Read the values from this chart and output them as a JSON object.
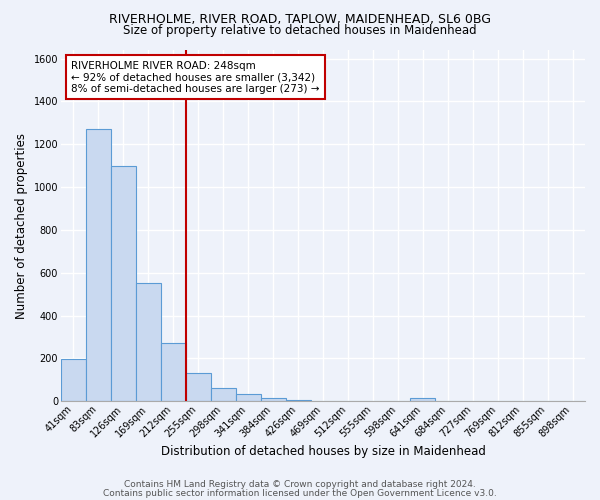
{
  "title_line1": "RIVERHOLME, RIVER ROAD, TAPLOW, MAIDENHEAD, SL6 0BG",
  "title_line2": "Size of property relative to detached houses in Maidenhead",
  "xlabel": "Distribution of detached houses by size in Maidenhead",
  "ylabel": "Number of detached properties",
  "categories": [
    "41sqm",
    "83sqm",
    "126sqm",
    "169sqm",
    "212sqm",
    "255sqm",
    "298sqm",
    "341sqm",
    "384sqm",
    "426sqm",
    "469sqm",
    "512sqm",
    "555sqm",
    "598sqm",
    "641sqm",
    "684sqm",
    "727sqm",
    "769sqm",
    "812sqm",
    "855sqm",
    "898sqm"
  ],
  "values": [
    197,
    1270,
    1100,
    553,
    270,
    130,
    60,
    32,
    16,
    7,
    0,
    0,
    0,
    0,
    14,
    0,
    0,
    0,
    0,
    0,
    0
  ],
  "bar_color": "#c9d9f0",
  "bar_edge_color": "#5b9bd5",
  "vline_x": 4.5,
  "vline_color": "#c00000",
  "annotation_text": "RIVERHOLME RIVER ROAD: 248sqm\n← 92% of detached houses are smaller (3,342)\n8% of semi-detached houses are larger (273) →",
  "annotation_box_color": "white",
  "annotation_box_edge_color": "#c00000",
  "ylim": [
    0,
    1640
  ],
  "yticks": [
    0,
    200,
    400,
    600,
    800,
    1000,
    1200,
    1400,
    1600
  ],
  "background_color": "#eef2fa",
  "grid_color": "#d8e4f0",
  "footer_line1": "Contains HM Land Registry data © Crown copyright and database right 2024.",
  "footer_line2": "Contains public sector information licensed under the Open Government Licence v3.0.",
  "title_fontsize": 9,
  "subtitle_fontsize": 8.5,
  "axis_label_fontsize": 8.5,
  "tick_fontsize": 7,
  "annotation_fontsize": 7.5,
  "footer_fontsize": 6.5
}
